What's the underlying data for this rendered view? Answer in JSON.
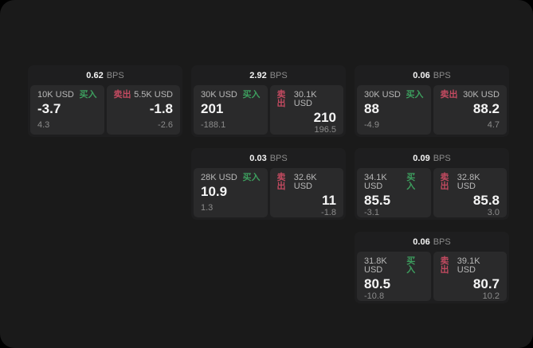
{
  "labels": {
    "buy": "买入",
    "sell": "卖出",
    "bps": "BPS"
  },
  "colors": {
    "buy": "#3d9e5e",
    "sell": "#c24a60",
    "page_bg": "#1a1a1a",
    "card_bg": "#1e1e1f",
    "panel_bg": "#2a2a2b"
  },
  "cards": [
    {
      "bps": "0.62",
      "buy": {
        "amount": "10K USD",
        "price": "-3.7",
        "delta": "4.3"
      },
      "sell": {
        "amount": "5.5K USD",
        "price": "-1.8",
        "delta": "-2.6"
      }
    },
    {
      "bps": "2.92",
      "buy": {
        "amount": "30K USD",
        "price": "201",
        "delta": "-188.1"
      },
      "sell": {
        "amount": "30.1K USD",
        "price": "210",
        "delta": "196.5"
      }
    },
    {
      "bps": "0.06",
      "buy": {
        "amount": "30K USD",
        "price": "88",
        "delta": "-4.9"
      },
      "sell": {
        "amount": "30K USD",
        "price": "88.2",
        "delta": "4.7"
      }
    },
    {
      "bps": "0.03",
      "buy": {
        "amount": "28K USD",
        "price": "10.9",
        "delta": "1.3"
      },
      "sell": {
        "amount": "32.6K USD",
        "price": "11",
        "delta": "-1.8"
      }
    },
    {
      "bps": "0.09",
      "buy": {
        "amount": "34.1K USD",
        "price": "85.5",
        "delta": "-3.1"
      },
      "sell": {
        "amount": "32.8K USD",
        "price": "85.8",
        "delta": "3.0"
      }
    },
    {
      "bps": "0.06",
      "buy": {
        "amount": "31.8K USD",
        "price": "80.5",
        "delta": "-10.8"
      },
      "sell": {
        "amount": "39.1K USD",
        "price": "80.7",
        "delta": "10.2"
      }
    }
  ]
}
